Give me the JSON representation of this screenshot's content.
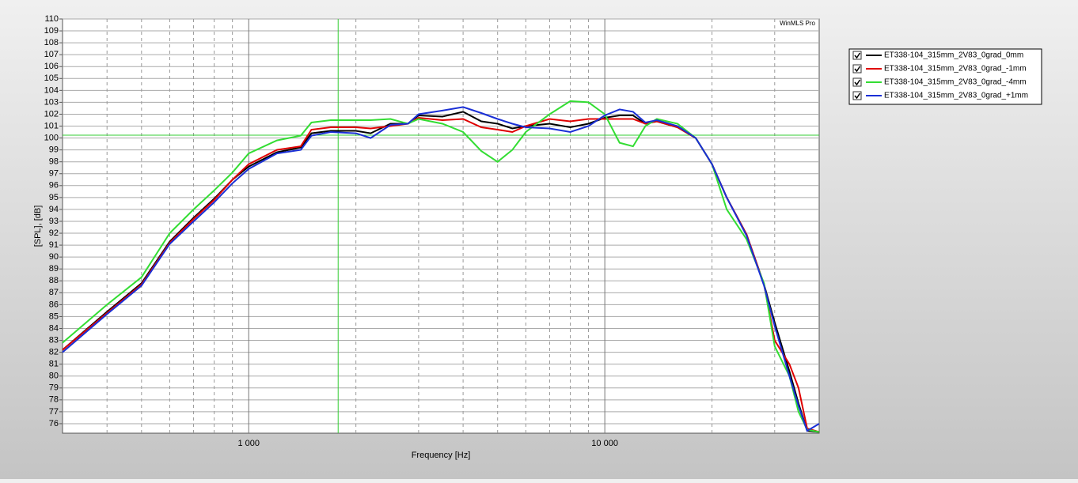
{
  "chart_data": {
    "type": "line",
    "watermark": "WinMLS Pro",
    "xlabel": "Frequency [Hz]",
    "ylabel": "[SPL], [dB]",
    "xscale": "log",
    "grid": true,
    "xlim": [
      300,
      40000
    ],
    "ylim": [
      75.2,
      110
    ],
    "xticks": [
      {
        "value": 1000,
        "label": "1 000"
      },
      {
        "value": 10000,
        "label": "10 000"
      }
    ],
    "xminor": [
      400,
      500,
      600,
      700,
      800,
      900,
      2000,
      3000,
      4000,
      5000,
      6000,
      7000,
      8000,
      9000,
      20000,
      30000
    ],
    "yticks": [
      76,
      77,
      78,
      79,
      80,
      81,
      82,
      83,
      84,
      85,
      86,
      87,
      88,
      89,
      90,
      91,
      92,
      93,
      94,
      95,
      96,
      97,
      98,
      99,
      100,
      101,
      102,
      103,
      104,
      105,
      106,
      107,
      108,
      109,
      110
    ],
    "cursor": {
      "x": 1783,
      "y": 100.24,
      "color": "#33cc33"
    },
    "x": [
      300,
      400,
      500,
      600,
      700,
      800,
      900,
      1000,
      1200,
      1400,
      1500,
      1700,
      2000,
      2200,
      2500,
      2800,
      3000,
      3500,
      4000,
      4500,
      5000,
      5500,
      6000,
      7000,
      8000,
      9000,
      10000,
      11000,
      12000,
      13000,
      14000,
      16000,
      18000,
      20000,
      22000,
      25000,
      28000,
      30000,
      33000,
      35000,
      37000,
      40000
    ],
    "series": [
      {
        "name": "ET338-104_315mm_2V83_0grad_0mm",
        "color": "#000000",
        "values": [
          82.2,
          85.4,
          87.8,
          91.3,
          93.3,
          94.9,
          96.5,
          97.6,
          98.8,
          99.2,
          100.4,
          100.6,
          100.6,
          100.4,
          101.2,
          101.2,
          101.9,
          101.8,
          102.2,
          101.4,
          101.2,
          100.8,
          101.0,
          101.2,
          100.9,
          101.2,
          101.7,
          101.9,
          101.9,
          101.2,
          101.4,
          100.9,
          100.0,
          97.8,
          95.0,
          91.9,
          87.7,
          84.5,
          80.4,
          77.7,
          75.4,
          75.3
        ]
      },
      {
        "name": "ET338-104_315mm_2V83_0grad_-1mm",
        "color": "#e00000",
        "values": [
          82.2,
          85.3,
          87.7,
          91.2,
          93.2,
          94.8,
          96.5,
          97.8,
          99.0,
          99.3,
          100.7,
          100.9,
          100.9,
          100.8,
          101.0,
          101.2,
          101.7,
          101.5,
          101.6,
          100.9,
          100.7,
          100.5,
          101.0,
          101.6,
          101.4,
          101.6,
          101.6,
          101.6,
          101.6,
          101.2,
          101.4,
          100.9,
          100.0,
          97.8,
          95.0,
          91.9,
          87.7,
          83.0,
          81.0,
          79.0,
          75.6,
          75.3
        ]
      },
      {
        "name": "ET338-104_315mm_2V83_0grad_-4mm",
        "color": "#33dd33",
        "values": [
          82.8,
          86.0,
          88.3,
          92.0,
          94.0,
          95.6,
          97.1,
          98.7,
          99.8,
          100.2,
          101.3,
          101.5,
          101.5,
          101.5,
          101.6,
          101.2,
          101.6,
          101.2,
          100.5,
          98.9,
          98.0,
          99.0,
          100.5,
          102.0,
          103.1,
          103.0,
          102.0,
          99.6,
          99.3,
          101.0,
          101.6,
          101.2,
          100.0,
          97.8,
          94.0,
          91.5,
          87.8,
          82.5,
          80.0,
          77.0,
          75.5,
          75.3
        ]
      },
      {
        "name": "ET338-104_315mm_2V83_0grad_+1mm",
        "color": "#1a2fd6",
        "values": [
          82.0,
          85.2,
          87.6,
          91.1,
          93.0,
          94.6,
          96.2,
          97.4,
          98.7,
          99.0,
          100.2,
          100.5,
          100.4,
          100.0,
          101.1,
          101.2,
          102.0,
          102.3,
          102.6,
          102.1,
          101.6,
          101.2,
          100.9,
          100.8,
          100.5,
          101.0,
          101.9,
          102.4,
          102.2,
          101.3,
          101.5,
          101.0,
          100.0,
          97.8,
          95.0,
          91.8,
          87.6,
          84.2,
          80.0,
          77.5,
          75.4,
          76.0
        ]
      }
    ]
  }
}
